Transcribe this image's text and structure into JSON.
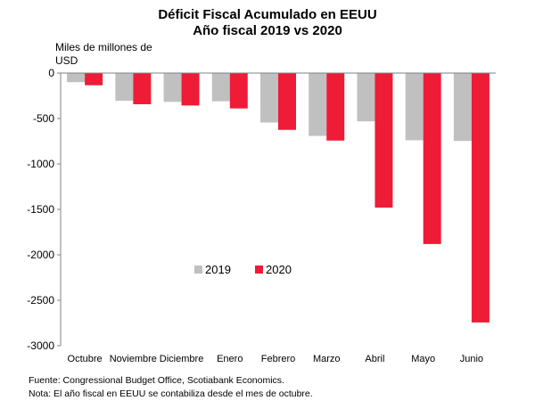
{
  "chart_data": {
    "type": "bar",
    "title_lines": [
      "Déficit Fiscal Acumulado en EEUU",
      "Año fiscal 2019 vs 2020"
    ],
    "ylabel_lines": [
      "Miles de millones de",
      "USD"
    ],
    "categories": [
      "Octubre",
      "Noviembre",
      "Diciembre",
      "Enero",
      "Febrero",
      "Marzo",
      "Abril",
      "Mayo",
      "Junio"
    ],
    "series": [
      {
        "name": "2019",
        "color": "#c0c0c0",
        "values": [
          -100,
          -305,
          -317,
          -310,
          -544,
          -691,
          -531,
          -739,
          -747
        ]
      },
      {
        "name": "2020",
        "color": "#ee1c37",
        "values": [
          -134,
          -343,
          -357,
          -389,
          -625,
          -743,
          -1480,
          -1881,
          -2744
        ]
      }
    ],
    "ylim": [
      -3000,
      0
    ],
    "yticks": [
      0,
      -500,
      -1000,
      -1500,
      -2000,
      -2500,
      -3000
    ],
    "legend_position": "center"
  },
  "footnotes": [
    "Fuente: Congressional Budget Office, Scotiabank Economics.",
    "Nota: El año fiscal en EEUU se contabiliza desde el mes de octubre."
  ]
}
